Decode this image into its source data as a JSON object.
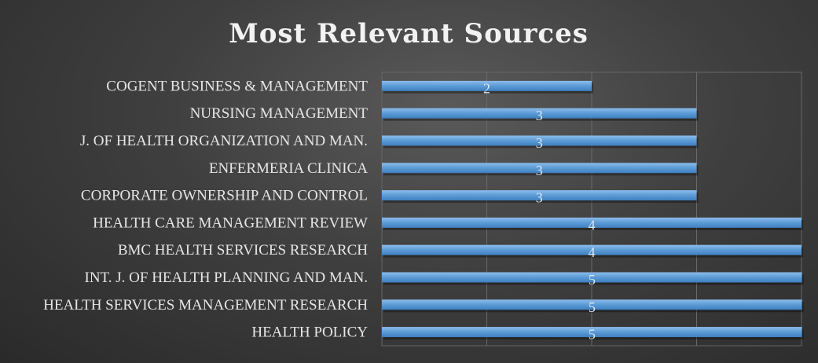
{
  "chart_data": {
    "type": "bar",
    "orientation": "horizontal",
    "title": "Most Relevant Sources",
    "categories": [
      "COGENT BUSINESS & MANAGEMENT",
      "NURSING MANAGEMENT",
      "J. OF HEALTH ORGANIZATION AND MAN.",
      "ENFERMERIA CLINICA",
      "CORPORATE OWNERSHIP AND CONTROL",
      "HEALTH CARE MANAGEMENT REVIEW",
      "BMC HEALTH SERVICES RESEARCH",
      "INT. J. OF HEALTH PLANNING AND MAN.",
      "HEALTH SERVICES MANAGEMENT RESEARCH",
      "HEALTH POLICY"
    ],
    "values": [
      2,
      3,
      3,
      3,
      3,
      4,
      4,
      5,
      5,
      5
    ],
    "data_labels": [
      "2",
      "3",
      "3",
      "3",
      "3",
      "4",
      "4",
      "5",
      "5",
      "5"
    ],
    "xlim": [
      0,
      4
    ],
    "grid": true,
    "legend": false,
    "bar_color": "#5b9bd5"
  },
  "colors": {
    "background": "#3a3a3a",
    "bar": "#5b9bd5",
    "bar_highlight": "#7fb2e5",
    "title": "#f2f2f2",
    "label": "#e6e6e6",
    "grid": "#6a6a6a"
  }
}
